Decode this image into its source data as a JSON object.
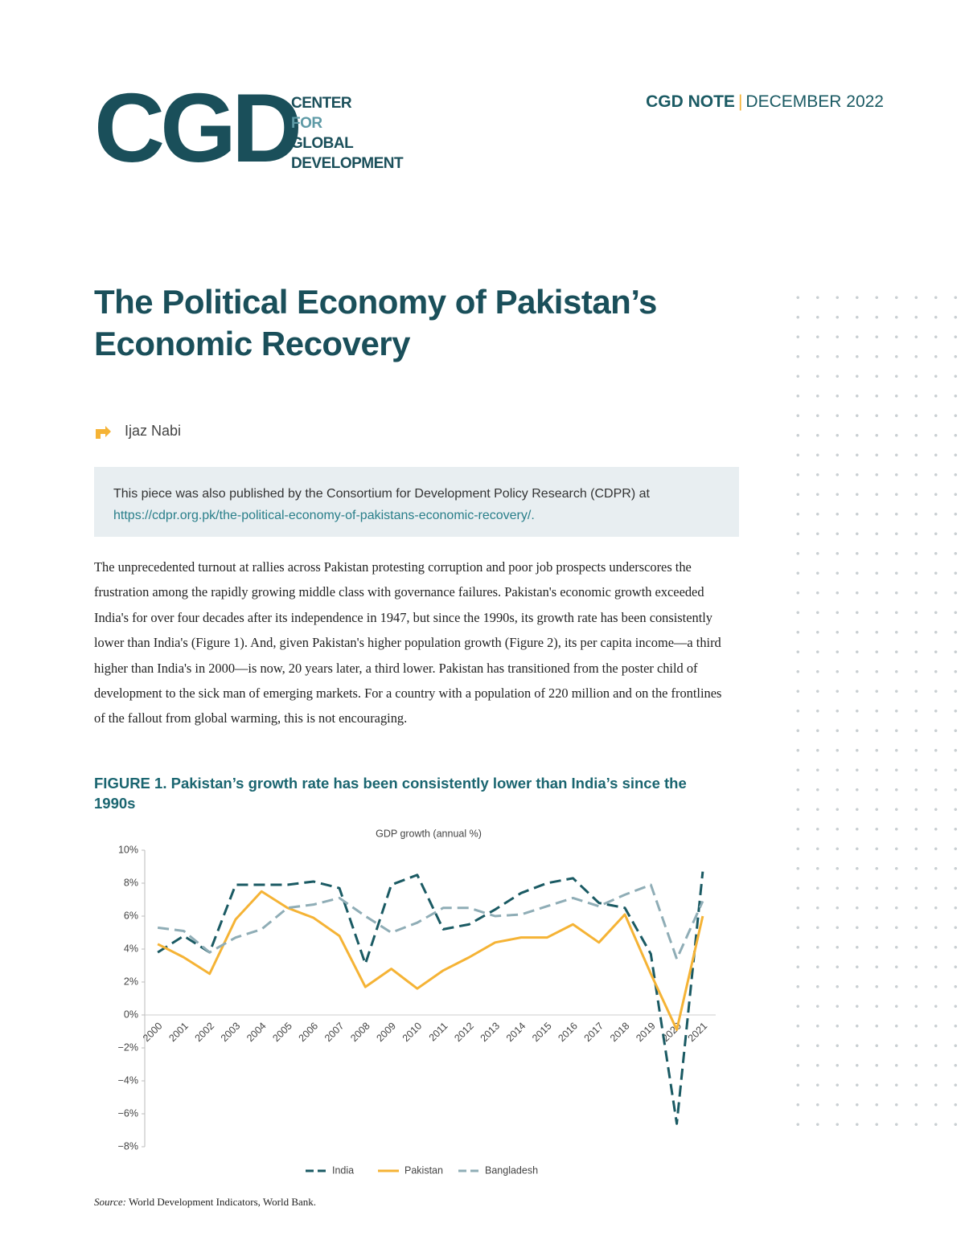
{
  "header": {
    "logo": "CGD",
    "org_lines": [
      "CENTER",
      "FOR",
      "GLOBAL",
      "DEVELOPMENT"
    ],
    "note_type": "CGD NOTE",
    "note_date": "DECEMBER 2022"
  },
  "title": "The Political Economy of Pakistan’s Economic Recovery",
  "author": "Ijaz Nabi",
  "notice": {
    "text": "This piece was also published by the Consortium for Development Policy Research (CDPR) at",
    "link": "https://cdpr.org.pk/the-political-economy-of-pakistans-economic-recovery/."
  },
  "paragraph": "The unprecedented turnout at rallies across Pakistan protesting corruption and poor job prospects underscores the frustration among the rapidly growing middle class with governance failures. Pakistan's economic growth exceeded India's for over four decades after its independence in 1947, but since the 1990s, its growth rate has been consistently lower than India's (Figure 1). And, given Pakistan's higher population growth (Figure 2), its per capita income—a third higher than India's in 2000—is now, 20 years later, a third lower. Pakistan has transitioned from the poster child of development to the sick man of emerging markets. For a country with a population of 220 million and on the frontlines of the fallout from global warming, this is not encouraging.",
  "figure_caption": "FIGURE 1. Pakistan’s growth rate has been consistently lower than India’s since the 1990s",
  "source": {
    "label": "Source:",
    "text": "World Development Indicators, World Bank."
  },
  "chart_data": {
    "type": "line",
    "title": "GDP growth (annual %)",
    "categories": [
      "2000",
      "2001",
      "2002",
      "2003",
      "2004",
      "2005",
      "2006",
      "2007",
      "2008",
      "2009",
      "2010",
      "2011",
      "2012",
      "2013",
      "2014",
      "2015",
      "2016",
      "2017",
      "2018",
      "2019",
      "2020",
      "2021"
    ],
    "series": [
      {
        "name": "India",
        "color": "#1a5a63",
        "dashed": true,
        "values": [
          3.8,
          4.8,
          3.8,
          7.9,
          7.9,
          7.9,
          8.1,
          7.7,
          3.1,
          7.9,
          8.5,
          5.2,
          5.5,
          6.4,
          7.4,
          8.0,
          8.3,
          6.8,
          6.5,
          3.7,
          -6.6,
          8.7
        ]
      },
      {
        "name": "Pakistan",
        "color": "#f5b335",
        "dashed": false,
        "values": [
          4.3,
          3.5,
          2.5,
          5.8,
          7.5,
          6.5,
          5.9,
          4.8,
          1.7,
          2.8,
          1.6,
          2.7,
          3.5,
          4.4,
          4.7,
          4.7,
          5.5,
          4.4,
          6.1,
          2.5,
          -0.9,
          6.0
        ]
      },
      {
        "name": "Bangladesh",
        "color": "#8fadb6",
        "dashed": true,
        "values": [
          5.3,
          5.1,
          3.8,
          4.7,
          5.2,
          6.5,
          6.7,
          7.1,
          6.0,
          5.0,
          5.6,
          6.5,
          6.5,
          6.0,
          6.1,
          6.6,
          7.1,
          6.6,
          7.3,
          7.9,
          3.4,
          6.9
        ]
      }
    ],
    "ylim": [
      -8,
      10
    ],
    "yticks": [
      {
        "value": 10,
        "label": "10%"
      },
      {
        "value": 8,
        "label": "8%"
      },
      {
        "value": 6,
        "label": "6%"
      },
      {
        "value": 4,
        "label": "4%"
      },
      {
        "value": 2,
        "label": "2%"
      },
      {
        "value": 0,
        "label": "0%"
      },
      {
        "value": -2,
        "label": "−2%"
      },
      {
        "value": -4,
        "label": "−4%"
      },
      {
        "value": -6,
        "label": "−6%"
      },
      {
        "value": -8,
        "label": "−8%"
      }
    ],
    "grid": false,
    "legend": "bottom"
  }
}
